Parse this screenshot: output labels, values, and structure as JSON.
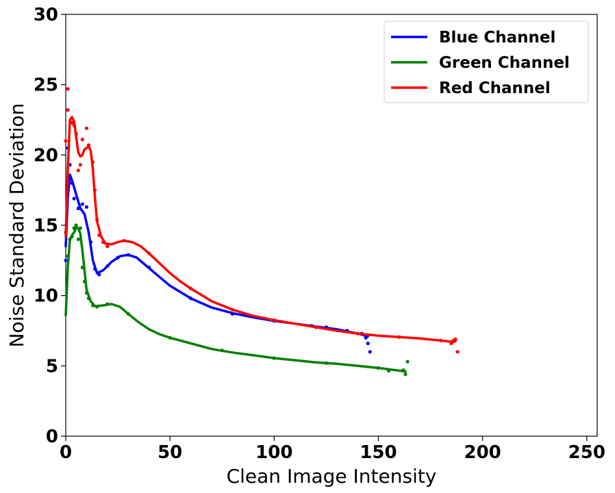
{
  "chart_data": {
    "type": "line",
    "title": "",
    "xlabel": "Clean Image Intensity",
    "ylabel": "Noise Standard Deviation",
    "xlim": [
      0,
      255
    ],
    "ylim": [
      0,
      30
    ],
    "xticks": [
      "0",
      "50",
      "100",
      "150",
      "200",
      "250"
    ],
    "yticks": [
      "0",
      "5",
      "10",
      "15",
      "20",
      "25",
      "30"
    ],
    "grid": false,
    "legend_position": "top-right",
    "series": [
      {
        "name": "Blue Channel",
        "color": "#0000ff",
        "fit": [
          [
            0,
            13.5
          ],
          [
            1,
            17.0
          ],
          [
            2,
            18.6
          ],
          [
            3,
            18.2
          ],
          [
            5,
            17.2
          ],
          [
            7,
            16.2
          ],
          [
            9,
            15.8
          ],
          [
            11,
            14.5
          ],
          [
            13,
            12.5
          ],
          [
            15,
            11.6
          ],
          [
            18,
            11.8
          ],
          [
            22,
            12.4
          ],
          [
            26,
            12.8
          ],
          [
            30,
            12.9
          ],
          [
            34,
            12.7
          ],
          [
            38,
            12.2
          ],
          [
            42,
            11.7
          ],
          [
            50,
            10.7
          ],
          [
            60,
            9.8
          ],
          [
            70,
            9.15
          ],
          [
            80,
            8.75
          ],
          [
            90,
            8.45
          ],
          [
            100,
            8.2
          ],
          [
            110,
            8.0
          ],
          [
            120,
            7.8
          ],
          [
            130,
            7.6
          ],
          [
            140,
            7.3
          ],
          [
            145,
            7.1
          ]
        ],
        "points": [
          [
            0,
            12.5
          ],
          [
            1,
            20.5
          ],
          [
            2,
            19.3
          ],
          [
            3,
            18.0
          ],
          [
            4,
            16.9
          ],
          [
            6,
            16.2
          ],
          [
            8,
            16.5
          ],
          [
            10,
            16.3
          ],
          [
            12,
            13.8
          ],
          [
            14,
            11.9
          ],
          [
            16,
            11.5
          ],
          [
            20,
            12.1
          ],
          [
            25,
            12.7
          ],
          [
            30,
            12.9
          ],
          [
            40,
            12.0
          ],
          [
            60,
            9.8
          ],
          [
            80,
            8.7
          ],
          [
            100,
            8.2
          ],
          [
            118,
            7.85
          ],
          [
            125,
            7.75
          ],
          [
            135,
            7.5
          ],
          [
            142,
            7.3
          ],
          [
            144,
            7.0
          ],
          [
            145,
            6.6
          ],
          [
            146,
            6.0
          ]
        ]
      },
      {
        "name": "Green Channel",
        "color": "#008000",
        "fit": [
          [
            0,
            8.6
          ],
          [
            1,
            12.0
          ],
          [
            2,
            14.0
          ],
          [
            3,
            14.3
          ],
          [
            4,
            14.5
          ],
          [
            5,
            14.8
          ],
          [
            6,
            14.8
          ],
          [
            7,
            14.4
          ],
          [
            8,
            13.2
          ],
          [
            9,
            11.8
          ],
          [
            10,
            10.4
          ],
          [
            12,
            9.6
          ],
          [
            14,
            9.25
          ],
          [
            18,
            9.3
          ],
          [
            22,
            9.4
          ],
          [
            26,
            9.2
          ],
          [
            30,
            8.7
          ],
          [
            35,
            8.1
          ],
          [
            40,
            7.6
          ],
          [
            45,
            7.25
          ],
          [
            50,
            7.0
          ],
          [
            60,
            6.6
          ],
          [
            70,
            6.2
          ],
          [
            80,
            5.95
          ],
          [
            90,
            5.75
          ],
          [
            100,
            5.55
          ],
          [
            110,
            5.4
          ],
          [
            120,
            5.25
          ],
          [
            130,
            5.15
          ],
          [
            140,
            5.0
          ],
          [
            150,
            4.85
          ],
          [
            158,
            4.7
          ],
          [
            163,
            4.6
          ]
        ],
        "points": [
          [
            0,
            14.5
          ],
          [
            1,
            12.8
          ],
          [
            2,
            14.0
          ],
          [
            3,
            14.2
          ],
          [
            4,
            14.8
          ],
          [
            5,
            15.0
          ],
          [
            6,
            14.0
          ],
          [
            7,
            14.8
          ],
          [
            8,
            12.0
          ],
          [
            9,
            11.0
          ],
          [
            10,
            10.2
          ],
          [
            11,
            9.8
          ],
          [
            13,
            9.3
          ],
          [
            15,
            9.2
          ],
          [
            20,
            9.4
          ],
          [
            30,
            8.7
          ],
          [
            50,
            7.0
          ],
          [
            75,
            6.1
          ],
          [
            100,
            5.55
          ],
          [
            125,
            5.2
          ],
          [
            150,
            4.85
          ],
          [
            155,
            4.65
          ],
          [
            162,
            4.7
          ],
          [
            163,
            4.4
          ],
          [
            164,
            5.3
          ]
        ]
      },
      {
        "name": "Red Channel",
        "color": "#ff0000",
        "fit": [
          [
            0,
            14.2
          ],
          [
            1,
            19.0
          ],
          [
            2,
            22.5
          ],
          [
            3,
            22.7
          ],
          [
            4,
            22.4
          ],
          [
            5,
            21.3
          ],
          [
            6,
            20.2
          ],
          [
            7,
            19.9
          ],
          [
            8,
            20.0
          ],
          [
            9,
            20.4
          ],
          [
            10,
            20.5
          ],
          [
            11,
            20.6
          ],
          [
            12,
            20.3
          ],
          [
            13,
            19.0
          ],
          [
            14,
            17.0
          ],
          [
            15,
            15.3
          ],
          [
            17,
            14.2
          ],
          [
            19,
            13.7
          ],
          [
            22,
            13.65
          ],
          [
            25,
            13.8
          ],
          [
            28,
            13.9
          ],
          [
            32,
            13.8
          ],
          [
            36,
            13.5
          ],
          [
            40,
            13.0
          ],
          [
            45,
            12.3
          ],
          [
            50,
            11.6
          ],
          [
            55,
            11.0
          ],
          [
            60,
            10.5
          ],
          [
            70,
            9.6
          ],
          [
            80,
            9.0
          ],
          [
            90,
            8.55
          ],
          [
            100,
            8.25
          ],
          [
            110,
            8.0
          ],
          [
            120,
            7.75
          ],
          [
            130,
            7.5
          ],
          [
            140,
            7.3
          ],
          [
            150,
            7.15
          ],
          [
            160,
            7.05
          ],
          [
            170,
            6.95
          ],
          [
            180,
            6.8
          ],
          [
            186,
            6.7
          ],
          [
            187,
            6.75
          ]
        ],
        "points": [
          [
            0,
            21.0
          ],
          [
            1,
            24.7
          ],
          [
            1,
            23.2
          ],
          [
            3,
            22.3
          ],
          [
            4,
            22.1
          ],
          [
            5,
            21.5
          ],
          [
            6,
            18.9
          ],
          [
            7,
            19.3
          ],
          [
            8,
            21.1
          ],
          [
            10,
            21.9
          ],
          [
            11,
            20.7
          ],
          [
            13,
            19.5
          ],
          [
            14,
            17.5
          ],
          [
            15,
            15.4
          ],
          [
            16,
            14.3
          ],
          [
            18,
            13.8
          ],
          [
            20,
            13.5
          ],
          [
            28,
            13.9
          ],
          [
            40,
            13.0
          ],
          [
            60,
            10.5
          ],
          [
            80,
            9.0
          ],
          [
            100,
            8.25
          ],
          [
            120,
            7.75
          ],
          [
            140,
            7.3
          ],
          [
            160,
            7.05
          ],
          [
            180,
            6.8
          ],
          [
            185,
            6.6
          ],
          [
            186,
            6.8
          ],
          [
            187,
            6.9
          ],
          [
            188,
            6.0
          ]
        ]
      }
    ]
  }
}
